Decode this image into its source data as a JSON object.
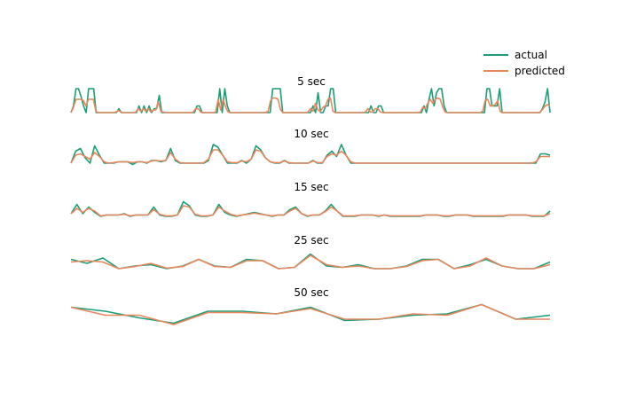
{
  "chart_data": {
    "type": "line",
    "legend": {
      "placement": "top-right",
      "entries": [
        "actual",
        "predicted"
      ]
    },
    "colors": {
      "actual": "#1b9e77",
      "predicted": "#e8875e"
    },
    "panels": [
      {
        "title": "5 sec",
        "series": [
          {
            "name": "actual",
            "values": [
              0.1,
              0.35,
              1,
              1,
              0.7,
              0.35,
              0.1,
              1,
              1,
              1,
              0.1,
              0.1,
              0.1,
              0.1,
              0.1,
              0.1,
              0.1,
              0.1,
              0.1,
              0.25,
              0.1,
              0.1,
              0.1,
              0.1,
              0.1,
              0.1,
              0.1,
              0.35,
              0.1,
              0.35,
              0.1,
              0.35,
              0.1,
              0.25,
              0.25,
              0.75,
              0.1,
              0.1,
              0.1,
              0.1,
              0.1,
              0.1,
              0.1,
              0.1,
              0.1,
              0.1,
              0.1,
              0.1,
              0.1,
              0.1,
              0.35,
              0.35,
              0.1,
              0.1,
              0.1,
              0.1,
              0.1,
              0.1,
              0.1,
              1,
              0.1,
              1,
              0.35,
              0.1,
              0.1,
              0.1,
              0.1,
              0.1,
              0.1,
              0.1,
              0.1,
              0.1,
              0.1,
              0.1,
              0.1,
              0.1,
              0.1,
              0.1,
              0.1,
              0.1,
              1,
              1,
              1,
              1,
              0.1,
              0.1,
              0.1,
              0.1,
              0.1,
              0.1,
              0.1,
              0.1,
              0.1,
              0.1,
              0.1,
              0.1,
              0.35,
              0.1,
              0.85,
              0.1,
              0.1,
              0.35,
              0.35,
              1,
              1,
              0.1,
              0.1,
              0.1,
              0.1,
              0.1,
              0.1,
              0.1,
              0.1,
              0.1,
              0.1,
              0.1,
              0.1,
              0.1,
              0.1,
              0.35,
              0.1,
              0.1,
              0.35,
              0.35,
              0.1,
              0.1,
              0.1,
              0.1,
              0.1,
              0.1,
              0.1,
              0.1,
              0.1,
              0.1,
              0.1,
              0.1,
              0.1,
              0.1,
              0.1,
              0.1,
              0.35,
              0.1,
              0.6,
              1,
              0.35,
              0.85,
              1,
              1,
              0.35,
              0.1,
              0.1,
              0.1,
              0.1,
              0.1,
              0.1,
              0.1,
              0.1,
              0.1,
              0.1,
              0.1,
              0.1,
              0.1,
              0.1,
              0.1,
              0.1,
              1,
              1,
              0.35,
              0.35,
              0.35,
              1,
              0.1,
              0.1,
              0.1,
              0.1,
              0.1,
              0.1,
              0.1,
              0.1,
              0.1,
              0.1,
              0.1,
              0.1,
              0.1,
              0.1,
              0.1,
              0.1,
              0.25,
              0.5,
              1,
              0.1
            ]
          },
          {
            "name": "predicted",
            "values": [
              0.1,
              0.3,
              0.6,
              0.6,
              0.6,
              0.55,
              0.35,
              0.6,
              0.6,
              0.6,
              0.15,
              0.1,
              0.1,
              0.1,
              0.1,
              0.1,
              0.1,
              0.1,
              0.12,
              0.18,
              0.12,
              0.1,
              0.1,
              0.1,
              0.1,
              0.1,
              0.12,
              0.25,
              0.15,
              0.25,
              0.15,
              0.25,
              0.12,
              0.2,
              0.2,
              0.5,
              0.15,
              0.12,
              0.1,
              0.1,
              0.1,
              0.1,
              0.1,
              0.1,
              0.1,
              0.1,
              0.1,
              0.1,
              0.1,
              0.12,
              0.25,
              0.25,
              0.12,
              0.1,
              0.1,
              0.1,
              0.1,
              0.1,
              0.12,
              0.6,
              0.2,
              0.6,
              0.3,
              0.12,
              0.1,
              0.1,
              0.1,
              0.1,
              0.1,
              0.1,
              0.1,
              0.1,
              0.1,
              0.1,
              0.1,
              0.1,
              0.1,
              0.1,
              0.1,
              0.15,
              0.55,
              0.65,
              0.65,
              0.6,
              0.2,
              0.1,
              0.1,
              0.1,
              0.1,
              0.1,
              0.1,
              0.1,
              0.1,
              0.1,
              0.1,
              0.12,
              0.25,
              0.15,
              0.45,
              0.2,
              0.15,
              0.3,
              0.35,
              0.6,
              0.65,
              0.15,
              0.1,
              0.1,
              0.1,
              0.1,
              0.1,
              0.1,
              0.1,
              0.1,
              0.1,
              0.1,
              0.1,
              0.1,
              0.12,
              0.25,
              0.12,
              0.12,
              0.25,
              0.25,
              0.12,
              0.1,
              0.1,
              0.1,
              0.1,
              0.1,
              0.1,
              0.1,
              0.1,
              0.1,
              0.1,
              0.1,
              0.1,
              0.1,
              0.1,
              0.1,
              0.12,
              0.3,
              0.25,
              0.45,
              0.6,
              0.45,
              0.6,
              0.65,
              0.6,
              0.3,
              0.12,
              0.1,
              0.1,
              0.1,
              0.1,
              0.1,
              0.1,
              0.1,
              0.1,
              0.1,
              0.1,
              0.1,
              0.1,
              0.1,
              0.1,
              0.15,
              0.55,
              0.6,
              0.35,
              0.35,
              0.4,
              0.55,
              0.15,
              0.1,
              0.1,
              0.1,
              0.1,
              0.1,
              0.1,
              0.1,
              0.1,
              0.1,
              0.1,
              0.1,
              0.1,
              0.1,
              0.1,
              0.1,
              0.12,
              0.22,
              0.35,
              0.4,
              0.35
            ]
          }
        ]
      },
      {
        "title": "10 sec",
        "series": [
          {
            "name": "actual",
            "values": [
              0.2,
              0.65,
              0.75,
              0.4,
              0.2,
              0.85,
              0.5,
              0.2,
              0.2,
              0.2,
              0.25,
              0.25,
              0.25,
              0.15,
              0.25,
              0.25,
              0.2,
              0.3,
              0.3,
              0.25,
              0.3,
              0.75,
              0.3,
              0.2,
              0.2,
              0.2,
              0.2,
              0.2,
              0.2,
              0.3,
              0.9,
              0.8,
              0.5,
              0.2,
              0.2,
              0.2,
              0.3,
              0.2,
              0.35,
              0.85,
              0.7,
              0.4,
              0.25,
              0.2,
              0.2,
              0.3,
              0.2,
              0.2,
              0.2,
              0.2,
              0.2,
              0.3,
              0.2,
              0.2,
              0.5,
              0.65,
              0.45,
              0.9,
              0.5,
              0.2,
              0.2,
              0.2,
              0.2,
              0.2,
              0.2,
              0.2,
              0.2,
              0.2,
              0.2,
              0.2,
              0.2,
              0.2,
              0.2,
              0.2,
              0.2,
              0.2,
              0.2,
              0.2,
              0.2,
              0.2,
              0.2,
              0.2,
              0.2,
              0.2,
              0.2,
              0.2,
              0.2,
              0.2,
              0.2,
              0.2,
              0.2,
              0.2,
              0.2,
              0.2,
              0.2,
              0.2,
              0.2,
              0.2,
              0.2,
              0.55,
              0.55,
              0.5
            ]
          },
          {
            "name": "predicted",
            "values": [
              0.2,
              0.5,
              0.55,
              0.45,
              0.35,
              0.6,
              0.45,
              0.25,
              0.2,
              0.22,
              0.25,
              0.25,
              0.25,
              0.22,
              0.25,
              0.25,
              0.22,
              0.28,
              0.3,
              0.28,
              0.3,
              0.6,
              0.35,
              0.22,
              0.2,
              0.2,
              0.2,
              0.2,
              0.22,
              0.35,
              0.7,
              0.7,
              0.5,
              0.25,
              0.22,
              0.22,
              0.28,
              0.25,
              0.35,
              0.7,
              0.65,
              0.4,
              0.25,
              0.22,
              0.22,
              0.28,
              0.22,
              0.2,
              0.2,
              0.2,
              0.2,
              0.28,
              0.22,
              0.22,
              0.45,
              0.55,
              0.5,
              0.65,
              0.5,
              0.25,
              0.2,
              0.2,
              0.2,
              0.2,
              0.2,
              0.2,
              0.2,
              0.2,
              0.2,
              0.2,
              0.2,
              0.2,
              0.2,
              0.2,
              0.2,
              0.2,
              0.2,
              0.2,
              0.2,
              0.2,
              0.2,
              0.2,
              0.2,
              0.2,
              0.2,
              0.2,
              0.2,
              0.2,
              0.2,
              0.2,
              0.2,
              0.2,
              0.2,
              0.2,
              0.2,
              0.2,
              0.2,
              0.2,
              0.25,
              0.45,
              0.45,
              0.45
            ]
          }
        ]
      },
      {
        "title": "15 sec",
        "series": [
          {
            "name": "actual",
            "values": [
              0.3,
              0.65,
              0.3,
              0.55,
              0.35,
              0.2,
              0.25,
              0.25,
              0.25,
              0.3,
              0.2,
              0.25,
              0.25,
              0.25,
              0.55,
              0.25,
              0.2,
              0.2,
              0.25,
              0.75,
              0.6,
              0.25,
              0.2,
              0.2,
              0.25,
              0.65,
              0.35,
              0.25,
              0.2,
              0.25,
              0.3,
              0.35,
              0.3,
              0.25,
              0.2,
              0.25,
              0.25,
              0.45,
              0.55,
              0.3,
              0.2,
              0.25,
              0.25,
              0.4,
              0.65,
              0.4,
              0.2,
              0.2,
              0.2,
              0.25,
              0.25,
              0.25,
              0.2,
              0.25,
              0.2,
              0.2,
              0.2,
              0.2,
              0.2,
              0.2,
              0.25,
              0.25,
              0.25,
              0.2,
              0.2,
              0.25,
              0.25,
              0.25,
              0.2,
              0.2,
              0.2,
              0.2,
              0.2,
              0.2,
              0.25,
              0.25,
              0.25,
              0.25,
              0.2,
              0.2,
              0.2,
              0.4
            ]
          },
          {
            "name": "predicted",
            "values": [
              0.3,
              0.5,
              0.35,
              0.5,
              0.4,
              0.22,
              0.25,
              0.25,
              0.25,
              0.28,
              0.22,
              0.25,
              0.25,
              0.25,
              0.45,
              0.28,
              0.22,
              0.22,
              0.25,
              0.6,
              0.55,
              0.28,
              0.22,
              0.22,
              0.25,
              0.55,
              0.4,
              0.28,
              0.22,
              0.25,
              0.28,
              0.32,
              0.28,
              0.25,
              0.22,
              0.25,
              0.25,
              0.4,
              0.5,
              0.3,
              0.22,
              0.25,
              0.25,
              0.38,
              0.55,
              0.4,
              0.22,
              0.22,
              0.22,
              0.25,
              0.25,
              0.25,
              0.22,
              0.25,
              0.22,
              0.22,
              0.22,
              0.22,
              0.22,
              0.22,
              0.25,
              0.25,
              0.25,
              0.22,
              0.22,
              0.25,
              0.25,
              0.25,
              0.22,
              0.22,
              0.22,
              0.22,
              0.22,
              0.22,
              0.25,
              0.25,
              0.25,
              0.25,
              0.22,
              0.22,
              0.22,
              0.3
            ]
          }
        ]
      },
      {
        "title": "25 sec",
        "series": [
          {
            "name": "actual",
            "values": [
              0.55,
              0.4,
              0.6,
              0.2,
              0.3,
              0.35,
              0.2,
              0.3,
              0.55,
              0.3,
              0.25,
              0.55,
              0.5,
              0.2,
              0.25,
              0.75,
              0.3,
              0.25,
              0.35,
              0.2,
              0.2,
              0.3,
              0.55,
              0.55,
              0.2,
              0.35,
              0.55,
              0.3,
              0.2,
              0.2,
              0.45
            ]
          },
          {
            "name": "predicted",
            "values": [
              0.45,
              0.5,
              0.45,
              0.2,
              0.28,
              0.4,
              0.22,
              0.28,
              0.55,
              0.28,
              0.25,
              0.5,
              0.5,
              0.2,
              0.25,
              0.7,
              0.35,
              0.25,
              0.3,
              0.2,
              0.2,
              0.28,
              0.5,
              0.55,
              0.2,
              0.3,
              0.6,
              0.3,
              0.2,
              0.2,
              0.35
            ]
          }
        ]
      },
      {
        "title": "50 sec",
        "series": [
          {
            "name": "actual",
            "values": [
              0.75,
              0.6,
              0.35,
              0.15,
              0.6,
              0.6,
              0.5,
              0.75,
              0.25,
              0.3,
              0.45,
              0.5,
              0.85,
              0.3,
              0.45
            ]
          },
          {
            "name": "predicted",
            "values": [
              0.75,
              0.45,
              0.45,
              0.1,
              0.55,
              0.55,
              0.5,
              0.7,
              0.3,
              0.3,
              0.5,
              0.45,
              0.85,
              0.3,
              0.3
            ]
          }
        ]
      }
    ]
  }
}
